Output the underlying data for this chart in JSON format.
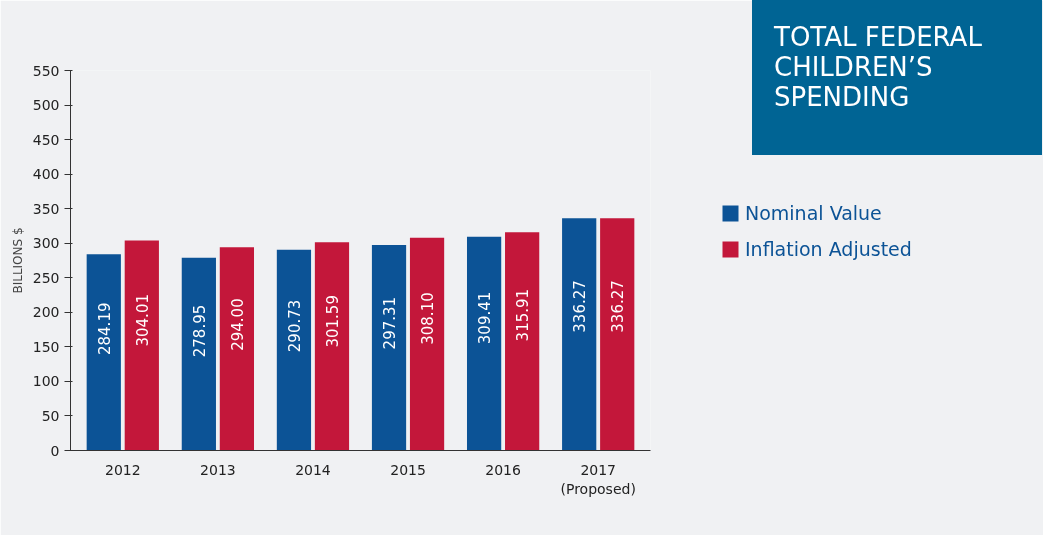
{
  "chart_data": {
    "type": "bar",
    "title": "TOTAL FEDERAL CHILDREN’S SPENDING",
    "ylabel": "BILLIONS $",
    "categories": [
      "2012",
      "2013",
      "2014",
      "2015",
      "2016",
      "2017\n(Proposed)"
    ],
    "series": [
      {
        "name": "Nominal Value",
        "color": "#0c5396",
        "values": [
          284.19,
          278.95,
          290.73,
          297.31,
          309.41,
          336.27
        ],
        "value_labels": [
          "284.19",
          "278.95",
          "290.73",
          "297.31",
          "309.41",
          "336.27"
        ]
      },
      {
        "name": "Inflation Adjusted",
        "color": "#c3173a",
        "values": [
          304.01,
          294.0,
          301.59,
          308.1,
          315.91,
          336.27
        ],
        "value_labels": [
          "304.01",
          "294.00",
          "301.59",
          "308.10",
          "315.91",
          "336.27"
        ]
      }
    ],
    "ylim": [
      0,
      550
    ],
    "yticks": [
      0,
      50,
      100,
      150,
      200,
      250,
      300,
      350,
      400,
      450,
      500,
      550
    ],
    "grid": false,
    "legend": "right"
  }
}
